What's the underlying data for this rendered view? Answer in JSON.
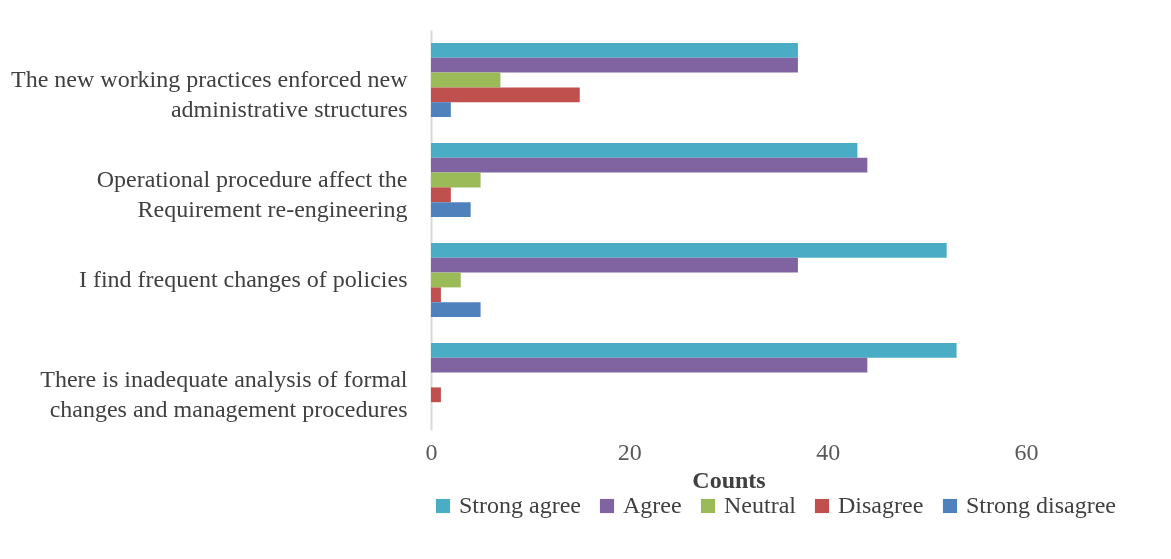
{
  "chart_data": {
    "type": "bar",
    "orientation": "horizontal",
    "xlabel": "Counts",
    "categories": [
      "The new working practices enforced new administrative structures",
      "Operational procedure affect the Requirement re-engineering",
      "I find frequent changes of policies",
      "There is inadequate analysis of formal changes  and management procedures"
    ],
    "series": [
      {
        "name": "Strong agree",
        "color": "#4bacc6",
        "values": [
          37,
          43,
          52,
          53
        ]
      },
      {
        "name": "Agree",
        "color": "#8064a2",
        "values": [
          37,
          44,
          37,
          44
        ]
      },
      {
        "name": "Neutral",
        "color": "#9bbb59",
        "values": [
          7,
          5,
          3,
          0
        ]
      },
      {
        "name": "Disagree",
        "color": "#c0504d",
        "values": [
          15,
          2,
          1,
          1
        ]
      },
      {
        "name": "Strong disagree",
        "color": "#4f81bd",
        "values": [
          2,
          4,
          5,
          0
        ]
      }
    ],
    "xlim": [
      0,
      60
    ],
    "xticks": [
      0,
      20,
      40,
      60
    ],
    "grid": false,
    "legend": "bottom"
  }
}
